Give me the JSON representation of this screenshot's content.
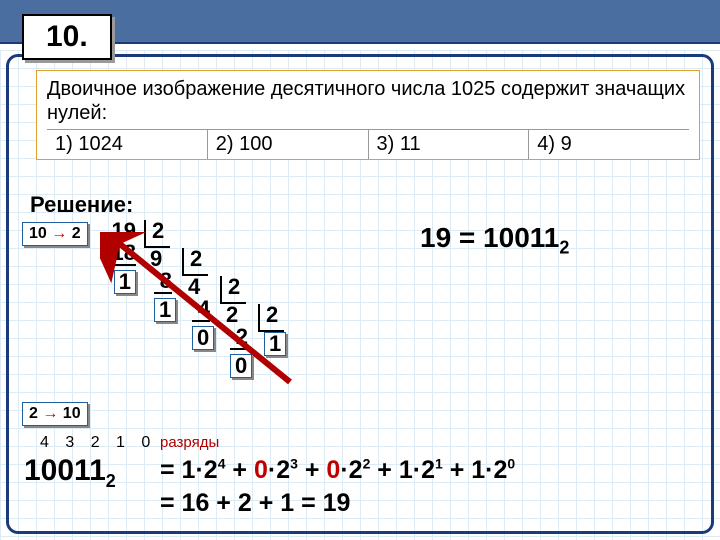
{
  "slide_number": "10.",
  "question": "Двоичное изображение десятичного числа 1025 содержит значащих нулей:",
  "options": [
    "1) 1024",
    "2) 100",
    "3) 11",
    "4) 9"
  ],
  "labels": {
    "solution": "Решение:",
    "ten_to_two": "10 → 2",
    "two_to_ten": "2 → 10",
    "digits_word": "разряды"
  },
  "result": {
    "prefix": "19 = 10011",
    "sub": "2"
  },
  "division": {
    "s0": {
      "dividend": "19",
      "under": "18",
      "rem": "1",
      "divisor": "2",
      "quotient": "9"
    },
    "s1": {
      "under": "8",
      "rem": "1",
      "divisor": "2",
      "quotient": "4"
    },
    "s2": {
      "under": "4",
      "rem": "0",
      "divisor": "2",
      "quotient": "2"
    },
    "s3": {
      "under": "2",
      "rem": "0",
      "divisor": "2",
      "quotient": "1"
    }
  },
  "arrow": {
    "color": "#b00000"
  },
  "positions": "4 3 2 1 0",
  "binary": {
    "digits": "10011",
    "sub": "2"
  },
  "expansion_line1_html": "= 1·2<sup>4</sup> + <span class='z'>0</span>·2<sup>3</sup> + <span class='z'>0</span>·2<sup>2</sup> + 1·2<sup>1</sup> + 1·2<sup>0</sup>",
  "expansion_line2": "= 16 + 2 + 1 = 19",
  "colors": {
    "frame": "#1b3a7a",
    "topbar": "#4a6ea0",
    "grid": "#c8dff0",
    "qborder": "#e0a030",
    "badge_border": "#2060a0",
    "red": "#c00000"
  }
}
